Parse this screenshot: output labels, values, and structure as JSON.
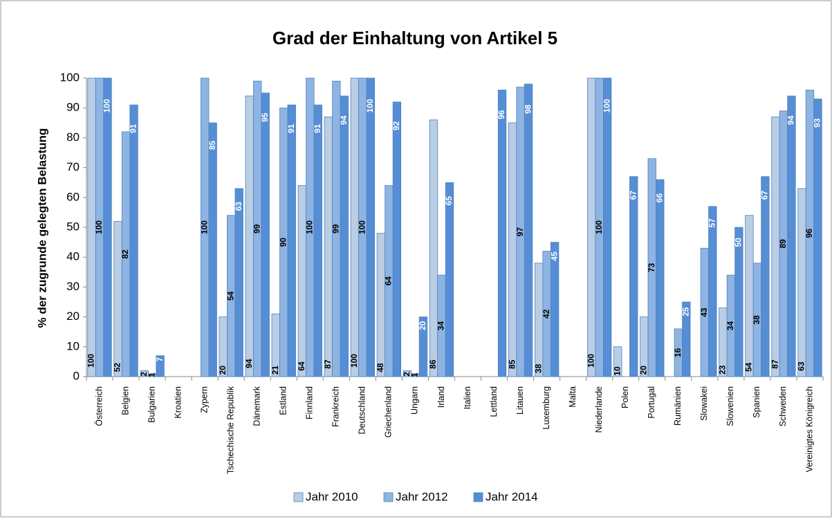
{
  "chart_data": {
    "type": "bar",
    "title": "Grad der Einhaltung von Artikel 5",
    "y_label": "% der zugrunde gelegten Belastung",
    "categories": [
      "Österreich",
      "Belgien",
      "Bulgarien",
      "Kroatien",
      "Zypern",
      "Tschechische Republik",
      "Dänemark",
      "Estland",
      "Finnland",
      "Frankreich",
      "Deutschland",
      "Griechenland",
      "Ungarn",
      "Irland",
      "Italien",
      "Lettland",
      "Litauen",
      "Luxemburg",
      "Malta",
      "Niederlande",
      "Polen",
      "Portugal",
      "Rumänien",
      "Slowakei",
      "Slowenien",
      "Spanien",
      "Schweden",
      "Vereinigtes Königreich"
    ],
    "series": [
      {
        "name": "Jahr 2010",
        "color": "#b9cde5",
        "label_color": "#000000",
        "values": [
          100,
          52,
          2,
          null,
          null,
          20,
          94,
          21,
          64,
          87,
          100,
          48,
          2,
          86,
          null,
          null,
          85,
          38,
          null,
          100,
          10,
          20,
          null,
          null,
          23,
          54,
          87,
          63
        ]
      },
      {
        "name": "Jahr 2012",
        "color": "#8eb4e3",
        "label_color": "#000000",
        "values": [
          100,
          82,
          1,
          null,
          100,
          54,
          99,
          90,
          100,
          99,
          100,
          64,
          1,
          34,
          null,
          null,
          97,
          42,
          null,
          100,
          null,
          73,
          16,
          43,
          34,
          38,
          89,
          96
        ]
      },
      {
        "name": "Jahr 2014",
        "color": "#558ed5",
        "label_color": "#ffffff",
        "values": [
          100,
          91,
          7,
          null,
          85,
          63,
          95,
          91,
          91,
          94,
          100,
          92,
          20,
          65,
          null,
          96,
          98,
          45,
          null,
          100,
          67,
          66,
          25,
          57,
          50,
          67,
          94,
          93
        ]
      }
    ],
    "ylim": [
      0,
      100
    ],
    "yticks": [
      0,
      10,
      20,
      30,
      40,
      50,
      60,
      70,
      80,
      90,
      100
    ],
    "grid": false,
    "legend": "bottom"
  }
}
